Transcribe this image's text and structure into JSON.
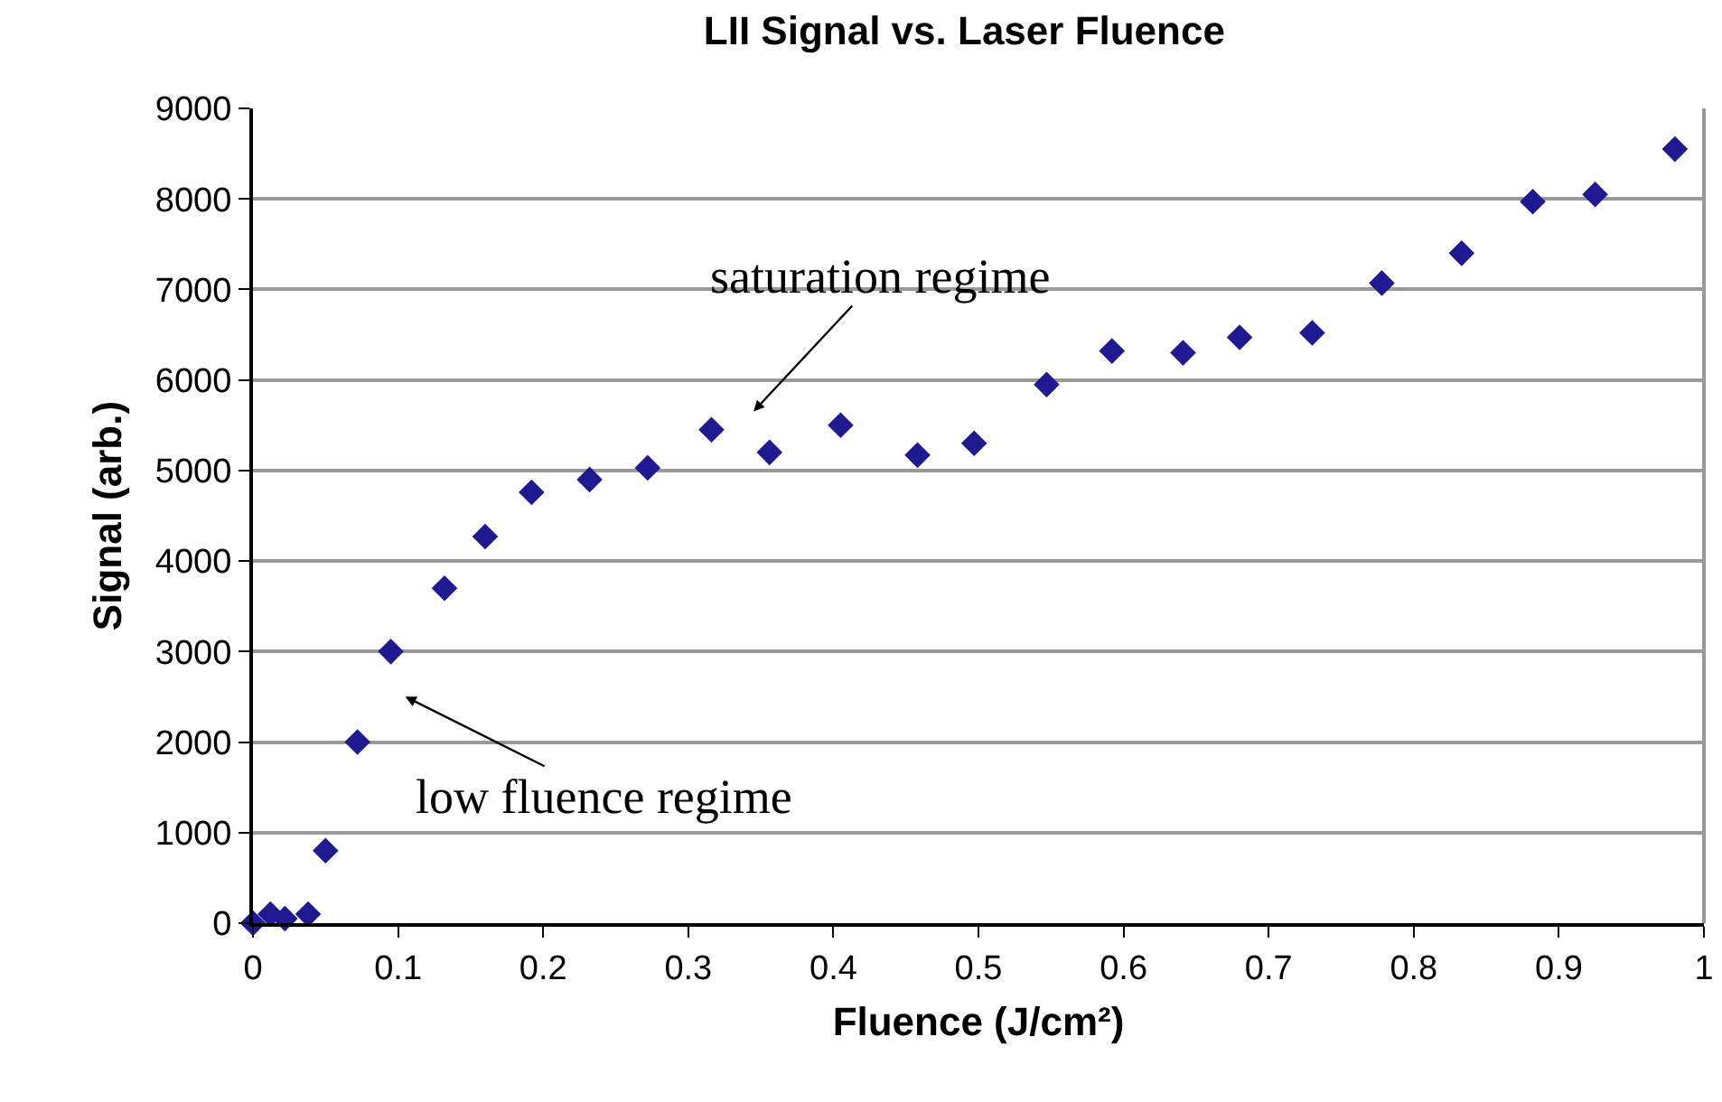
{
  "chart_data": {
    "type": "scatter",
    "title": "LII Signal vs. Laser Fluence",
    "xlabel": "Fluence (J/cm²)",
    "ylabel": "Signal (arb.)",
    "x": [
      0,
      0.012,
      0.022,
      0.038,
      0.05,
      0.072,
      0.095,
      0.132,
      0.16,
      0.192,
      0.232,
      0.272,
      0.316,
      0.356,
      0.405,
      0.458,
      0.497,
      0.547,
      0.592,
      0.641,
      0.68,
      0.73,
      0.778,
      0.833,
      0.882,
      0.925,
      0.98
    ],
    "values": [
      0,
      100,
      50,
      100,
      800,
      2000,
      3000,
      3700,
      4270,
      4760,
      4900,
      5030,
      5450,
      5200,
      5500,
      5170,
      5300,
      5950,
      6320,
      6300,
      6470,
      6520,
      7070,
      7400,
      7970,
      8050,
      8550
    ],
    "color": "#1f1a8f",
    "marker": "diamond",
    "grid": "y",
    "xlim": [
      0,
      1
    ],
    "xticks": [
      0,
      0.1,
      0.2,
      0.3,
      0.4,
      0.5,
      0.6,
      0.7,
      0.8,
      0.9,
      1
    ],
    "ylim": [
      0,
      9000
    ],
    "yticks": [
      0,
      1000,
      2000,
      3000,
      4000,
      5000,
      6000,
      7000,
      8000,
      9000
    ],
    "annotations": [
      "saturation regime",
      "low fluence regime"
    ]
  }
}
